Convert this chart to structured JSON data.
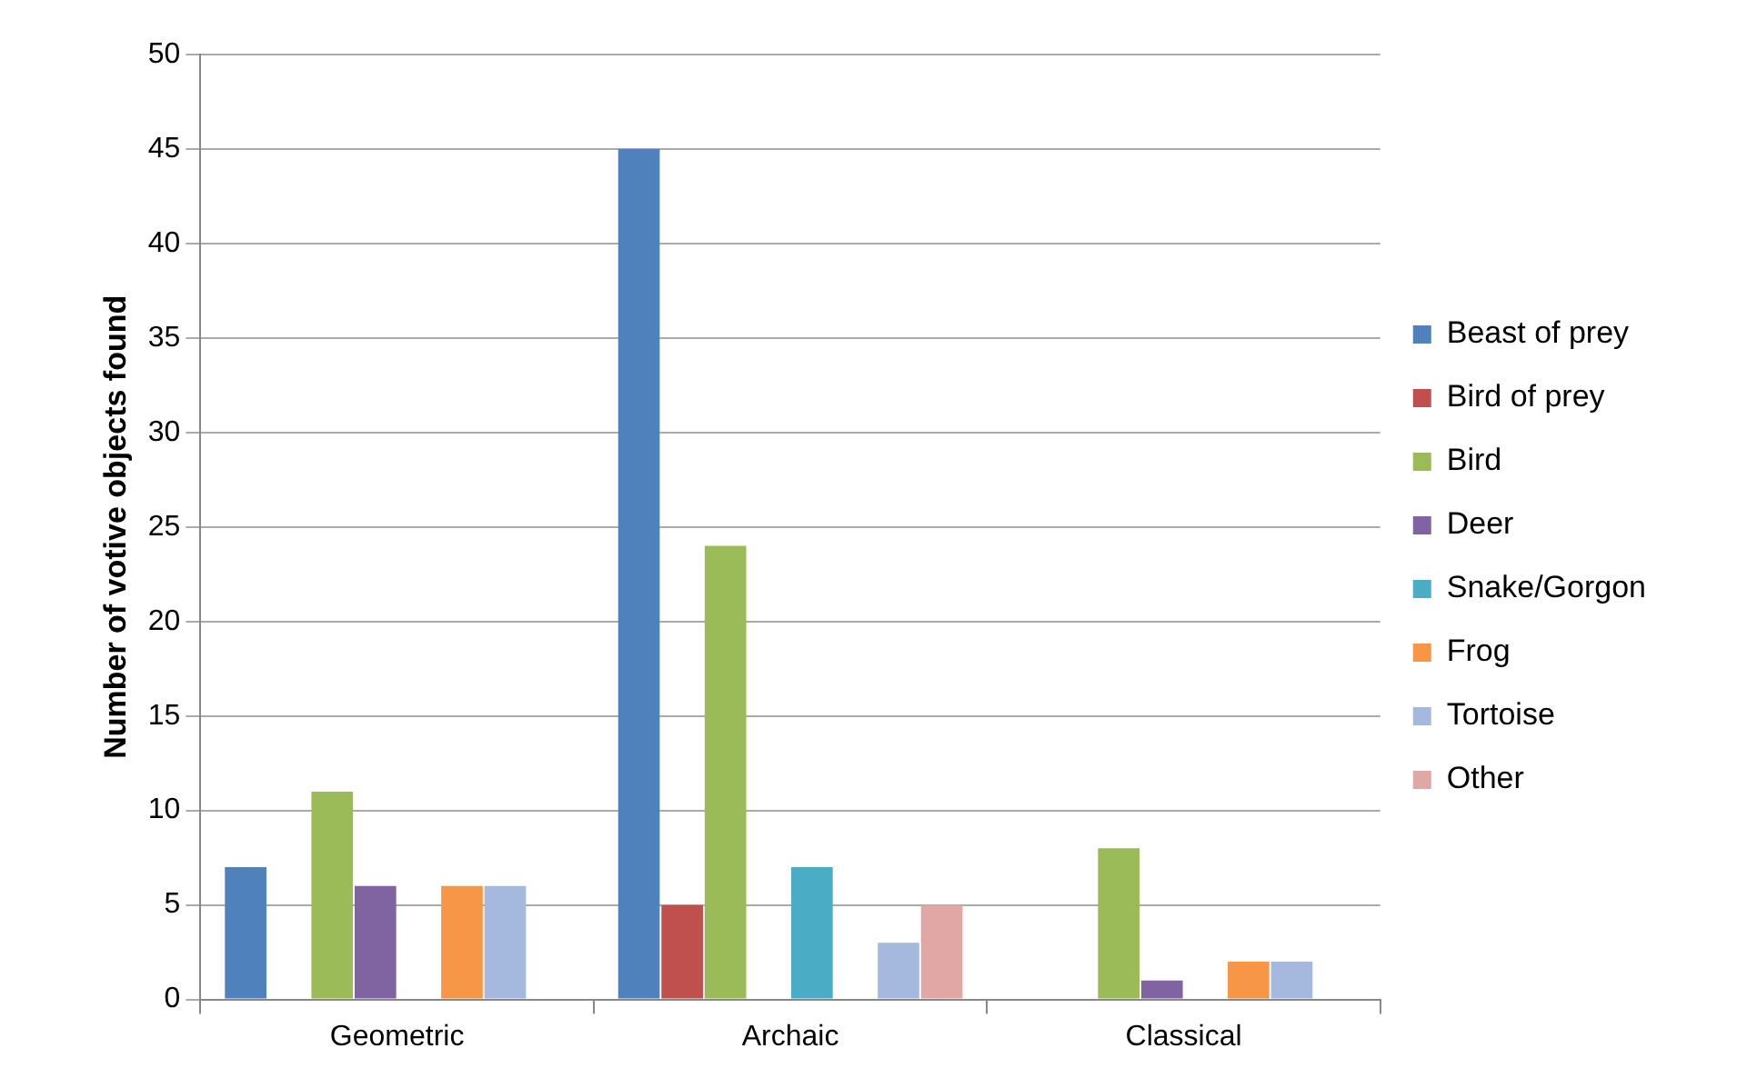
{
  "chart_data": {
    "type": "bar",
    "ylabel": "Number of votive objects found",
    "categories": [
      "Geometric",
      "Archaic",
      "Classical"
    ],
    "series": [
      {
        "name": "Beast of prey",
        "color": "#4f81bd",
        "values": [
          7,
          45,
          0
        ]
      },
      {
        "name": "Bird of prey",
        "color": "#c0504d",
        "values": [
          0,
          5,
          0
        ]
      },
      {
        "name": "Bird",
        "color": "#9bbb59",
        "values": [
          11,
          24,
          8
        ]
      },
      {
        "name": "Deer",
        "color": "#8064a2",
        "values": [
          6,
          0,
          1
        ]
      },
      {
        "name": "Snake/Gorgon",
        "color": "#4bacc6",
        "values": [
          0,
          7,
          0
        ]
      },
      {
        "name": "Frog",
        "color": "#f79646",
        "values": [
          6,
          0,
          2
        ]
      },
      {
        "name": "Tortoise",
        "color": "#a5b9df",
        "values": [
          6,
          3,
          2
        ]
      },
      {
        "name": "Other",
        "color": "#e0a7a5",
        "values": [
          0,
          5,
          0
        ]
      }
    ],
    "ylim": [
      0,
      50
    ],
    "yticks": [
      0,
      5,
      10,
      15,
      20,
      25,
      30,
      35,
      40,
      45,
      50
    ],
    "grid": "y",
    "legend": "right"
  }
}
